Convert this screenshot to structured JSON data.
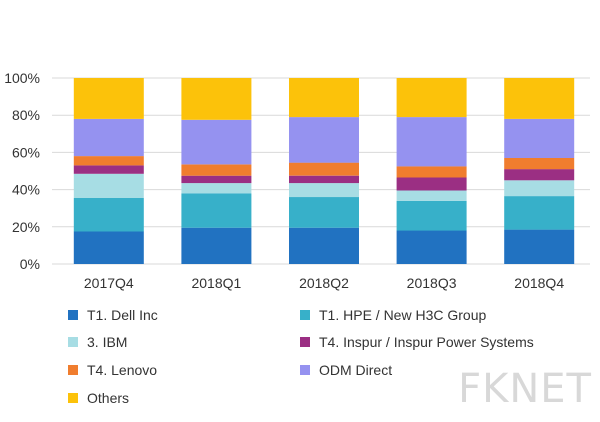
{
  "chart_data": {
    "type": "bar",
    "stacked": true,
    "percent": true,
    "title": "",
    "xlabel": "",
    "ylabel": "",
    "ylim": [
      0,
      100
    ],
    "yticks": [
      "0%",
      "20%",
      "40%",
      "60%",
      "80%",
      "100%"
    ],
    "categories": [
      "2017Q4",
      "2018Q1",
      "2018Q2",
      "2018Q3",
      "2018Q4"
    ],
    "series": [
      {
        "name": "T1. Dell Inc",
        "color": "#2172c1",
        "values": [
          17.5,
          19.5,
          19.5,
          18,
          18.5
        ]
      },
      {
        "name": "T1. HPE / New H3C Group",
        "color": "#37b0c9",
        "values": [
          18,
          18.5,
          16.5,
          16,
          18
        ]
      },
      {
        "name": "3. IBM",
        "color": "#a7dde4",
        "values": [
          13,
          5.5,
          7.5,
          5.5,
          8.5
        ]
      },
      {
        "name": "T4. Inspur / Inspur Power Systems",
        "color": "#9b2f83",
        "values": [
          4.5,
          4,
          4,
          7,
          6
        ]
      },
      {
        "name": "T4. Lenovo",
        "color": "#f07d2e",
        "values": [
          5,
          6,
          7,
          6,
          6
        ]
      },
      {
        "name": "ODM Direct",
        "color": "#9592f0",
        "values": [
          20,
          24,
          24.5,
          26.5,
          21
        ]
      },
      {
        "name": "Others",
        "color": "#fcc20a",
        "values": [
          22,
          22.5,
          21,
          21,
          22
        ]
      }
    ],
    "legend_position": "bottom"
  },
  "watermark": "FKNET"
}
